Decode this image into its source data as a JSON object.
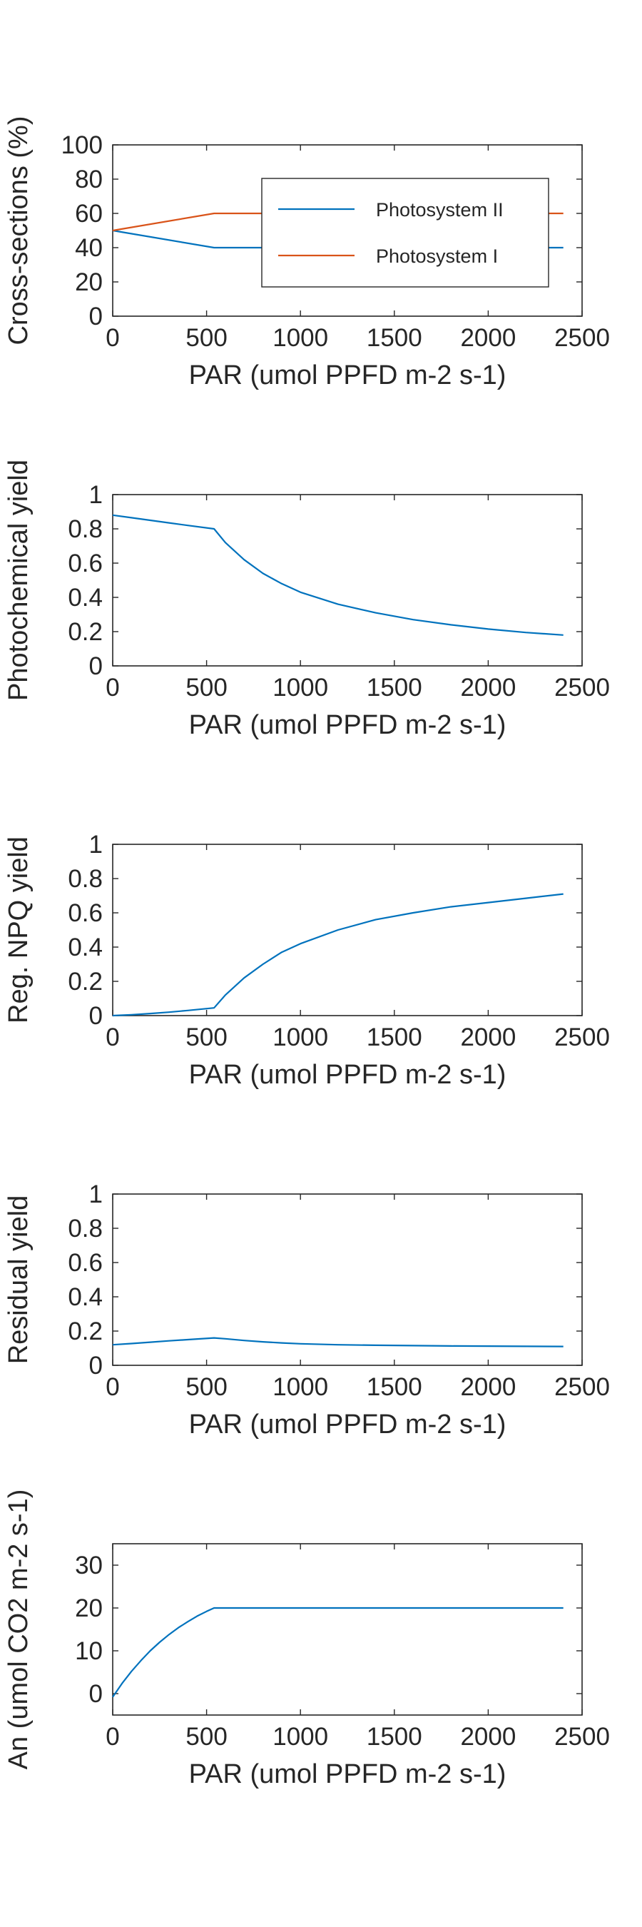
{
  "chart_data": [
    {
      "type": "line",
      "xlabel": "PAR (umol PPFD m-2 s-1)",
      "ylabel": "Cross-sections (%)",
      "xlim": [
        0,
        2500
      ],
      "ylim": [
        0,
        100
      ],
      "xticks": [
        "0",
        "500",
        "1000",
        "1500",
        "2000",
        "2500"
      ],
      "yticks": [
        "0",
        "20",
        "40",
        "60",
        "80",
        "100"
      ],
      "legend": "top-right",
      "series": [
        {
          "name": "Photosystem II",
          "color": "#0072BD",
          "x": [
            0,
            540,
            2400
          ],
          "y": [
            50,
            40,
            40
          ]
        },
        {
          "name": "Photosystem I",
          "color": "#D95319",
          "x": [
            0,
            540,
            2400
          ],
          "y": [
            50,
            60,
            60
          ]
        }
      ]
    },
    {
      "type": "line",
      "xlabel": "PAR (umol PPFD m-2 s-1)",
      "ylabel": "Photochemical yield",
      "xlim": [
        0,
        2500
      ],
      "ylim": [
        0,
        1
      ],
      "xticks": [
        "0",
        "500",
        "1000",
        "1500",
        "2000",
        "2500"
      ],
      "yticks": [
        "0",
        "0.2",
        "0.4",
        "0.6",
        "0.8",
        "1"
      ],
      "series": [
        {
          "color": "#0072BD",
          "x": [
            0,
            100,
            200,
            300,
            400,
            540,
            600,
            700,
            800,
            900,
            1000,
            1200,
            1400,
            1600,
            1800,
            2000,
            2200,
            2400
          ],
          "y": [
            0.88,
            0.865,
            0.85,
            0.835,
            0.82,
            0.8,
            0.72,
            0.62,
            0.54,
            0.48,
            0.43,
            0.36,
            0.31,
            0.27,
            0.24,
            0.215,
            0.195,
            0.18
          ]
        }
      ]
    },
    {
      "type": "line",
      "xlabel": "PAR (umol PPFD m-2 s-1)",
      "ylabel": "Reg. NPQ yield",
      "xlim": [
        0,
        2500
      ],
      "ylim": [
        0,
        1
      ],
      "xticks": [
        "0",
        "500",
        "1000",
        "1500",
        "2000",
        "2500"
      ],
      "yticks": [
        "0",
        "0.2",
        "0.4",
        "0.6",
        "0.8",
        "1"
      ],
      "series": [
        {
          "color": "#0072BD",
          "x": [
            0,
            100,
            200,
            300,
            400,
            540,
            600,
            700,
            800,
            900,
            1000,
            1200,
            1400,
            1600,
            1800,
            2000,
            2200,
            2400
          ],
          "y": [
            0.0,
            0.005,
            0.012,
            0.02,
            0.03,
            0.045,
            0.12,
            0.22,
            0.3,
            0.37,
            0.42,
            0.5,
            0.56,
            0.6,
            0.635,
            0.66,
            0.685,
            0.71
          ]
        }
      ]
    },
    {
      "type": "line",
      "xlabel": "PAR (umol PPFD m-2 s-1)",
      "ylabel": "Residual yield",
      "xlim": [
        0,
        2500
      ],
      "ylim": [
        0,
        1
      ],
      "xticks": [
        "0",
        "500",
        "1000",
        "1500",
        "2000",
        "2500"
      ],
      "yticks": [
        "0",
        "0.2",
        "0.4",
        "0.6",
        "0.8",
        "1"
      ],
      "series": [
        {
          "color": "#0072BD",
          "x": [
            0,
            100,
            200,
            300,
            400,
            540,
            600,
            700,
            800,
            900,
            1000,
            1200,
            1400,
            1600,
            1800,
            2000,
            2200,
            2400
          ],
          "y": [
            0.12,
            0.127,
            0.135,
            0.143,
            0.15,
            0.16,
            0.155,
            0.145,
            0.137,
            0.131,
            0.126,
            0.12,
            0.117,
            0.115,
            0.113,
            0.112,
            0.111,
            0.11
          ]
        }
      ]
    },
    {
      "type": "line",
      "xlabel": "PAR (umol PPFD m-2 s-1)",
      "ylabel": "An (umol CO2 m-2 s-1)",
      "xlim": [
        0,
        2500
      ],
      "ylim": [
        -5,
        35
      ],
      "xticks": [
        "0",
        "500",
        "1000",
        "1500",
        "2000",
        "2500"
      ],
      "yticks": [
        "0",
        "10",
        "20",
        "30"
      ],
      "series": [
        {
          "color": "#0072BD",
          "x": [
            0,
            50,
            100,
            150,
            200,
            250,
            300,
            350,
            400,
            450,
            500,
            540,
            2400
          ],
          "y": [
            -0.8,
            2.4,
            5.2,
            7.7,
            10.0,
            12.0,
            13.8,
            15.4,
            16.8,
            18.1,
            19.2,
            20.0,
            20.0
          ]
        }
      ]
    }
  ]
}
